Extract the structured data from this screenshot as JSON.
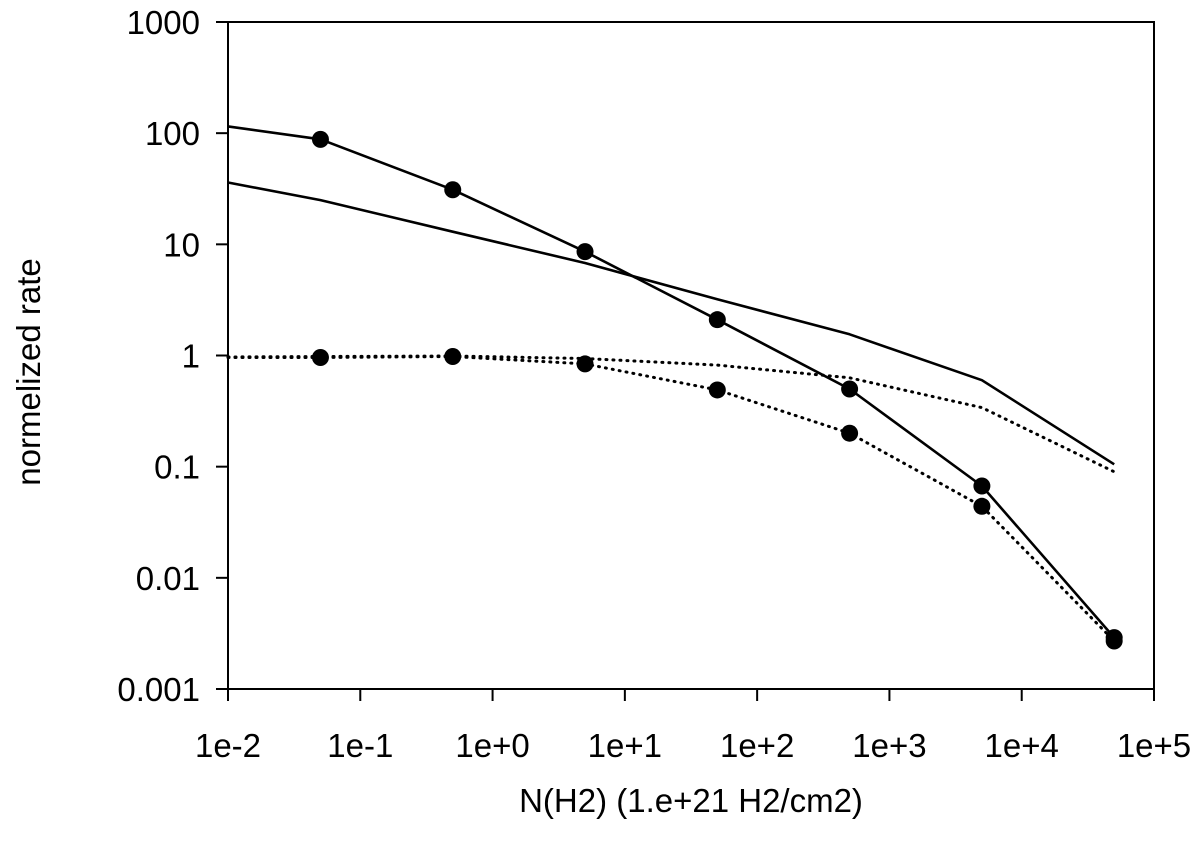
{
  "chart_data": {
    "type": "line",
    "title": "",
    "xlabel": "N(H2) (1.e+21 H2/cm2)",
    "ylabel": "normelized rate",
    "x_scale": "log",
    "y_scale": "log",
    "xlim": [
      0.01,
      100000
    ],
    "ylim": [
      0.001,
      1000
    ],
    "x_ticks": [
      0.01,
      0.1,
      1,
      10,
      100,
      1000,
      10000,
      100000
    ],
    "x_tick_labels": [
      "1e-2",
      "1e-1",
      "1e+0",
      "1e+1",
      "1e+2",
      "1e+3",
      "1e+4",
      "1e+5"
    ],
    "y_ticks": [
      0.001,
      0.01,
      0.1,
      1,
      10,
      100,
      1000
    ],
    "y_tick_labels": [
      "0.001",
      "0.01",
      "0.1",
      "1",
      "10",
      "100",
      "1000"
    ],
    "grid": false,
    "legend": "none",
    "series": [
      {
        "name": "solid with markers",
        "style": "solid",
        "markers": true,
        "line_start": [
          0.01,
          115
        ],
        "points": [
          [
            0.05,
            88
          ],
          [
            0.5,
            31
          ],
          [
            5,
            8.6
          ],
          [
            50,
            2.1
          ],
          [
            500,
            0.5
          ],
          [
            5000,
            0.067
          ],
          [
            50000,
            0.0029
          ]
        ]
      },
      {
        "name": "solid without markers",
        "style": "solid",
        "markers": false,
        "points": [
          [
            0.01,
            36
          ],
          [
            0.05,
            25
          ],
          [
            0.5,
            13
          ],
          [
            5,
            6.8
          ],
          [
            50,
            3.2
          ],
          [
            500,
            1.55
          ],
          [
            5000,
            0.6
          ],
          [
            50000,
            0.105
          ]
        ]
      },
      {
        "name": "dotted with markers",
        "style": "dotted",
        "markers": true,
        "line_start": [
          0.01,
          0.96
        ],
        "points": [
          [
            0.05,
            0.96
          ],
          [
            0.5,
            0.98
          ],
          [
            5,
            0.84
          ],
          [
            50,
            0.49
          ],
          [
            500,
            0.2
          ],
          [
            5000,
            0.044
          ],
          [
            50000,
            0.0027
          ]
        ]
      },
      {
        "name": "dotted without markers",
        "style": "dotted",
        "markers": false,
        "points": [
          [
            0.01,
            0.97
          ],
          [
            0.05,
            0.98
          ],
          [
            0.5,
            0.99
          ],
          [
            5,
            0.94
          ],
          [
            50,
            0.82
          ],
          [
            500,
            0.63
          ],
          [
            5000,
            0.34
          ],
          [
            50000,
            0.09
          ]
        ]
      }
    ]
  }
}
